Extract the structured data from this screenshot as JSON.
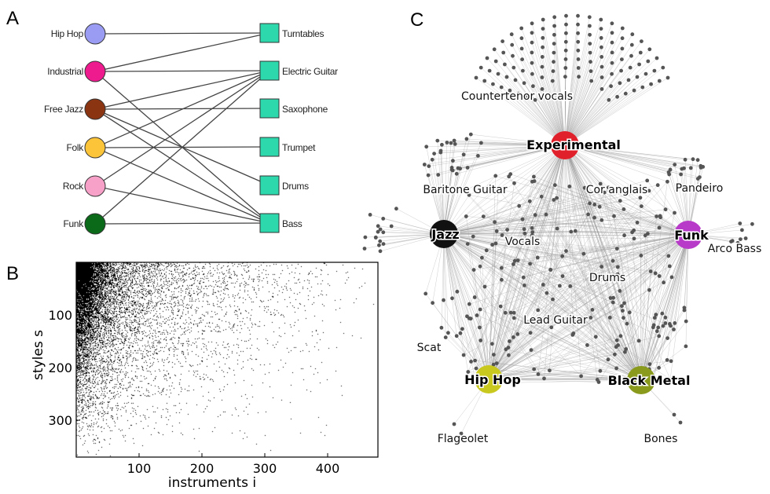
{
  "panels": {
    "a": "A",
    "b": "B",
    "c": "C"
  },
  "panel_a": {
    "styles": [
      {
        "label": "Hip Hop",
        "color": "#9a9cf3"
      },
      {
        "label": "Industrial",
        "color": "#ee1b8e"
      },
      {
        "label": "Free Jazz",
        "color": "#8b3412"
      },
      {
        "label": "Folk",
        "color": "#fcc438"
      },
      {
        "label": "Rock",
        "color": "#f7a0c8"
      },
      {
        "label": "Funk",
        "color": "#0b6a1a"
      }
    ],
    "instruments": [
      {
        "label": "Turntables"
      },
      {
        "label": "Electric Guitar"
      },
      {
        "label": "Saxophone"
      },
      {
        "label": "Trumpet"
      },
      {
        "label": "Drums"
      },
      {
        "label": "Bass"
      }
    ],
    "instrument_color": "#2dd8ad",
    "edges": [
      [
        0,
        0
      ],
      [
        1,
        0
      ],
      [
        1,
        1
      ],
      [
        1,
        5
      ],
      [
        2,
        1
      ],
      [
        2,
        2
      ],
      [
        2,
        4
      ],
      [
        2,
        5
      ],
      [
        3,
        1
      ],
      [
        3,
        3
      ],
      [
        3,
        5
      ],
      [
        4,
        1
      ],
      [
        4,
        5
      ],
      [
        5,
        1
      ],
      [
        5,
        5
      ]
    ]
  },
  "chart_data": {
    "type": "scatter",
    "title": "",
    "xlabel": "instruments i",
    "ylabel": "styles s",
    "xlim": [
      0,
      480
    ],
    "ylim": [
      370,
      0
    ],
    "x_ticks": [
      "100",
      "200",
      "300",
      "400"
    ],
    "y_ticks": [
      "100",
      "200",
      "300"
    ],
    "x_tick_values": [
      100,
      200,
      300,
      400
    ],
    "y_tick_values": [
      100,
      200,
      300
    ],
    "grid": false,
    "description_of_marks": "dense binary occurrence matrix: fully filled near small i and small s, thinning with increasing i and s",
    "num_styles": 370,
    "num_instruments": 450,
    "color": "#000000"
  },
  "panel_c": {
    "hubs": [
      {
        "label": "Experimental",
        "color": "#e0202a"
      },
      {
        "label": "Jazz",
        "color": "#111111"
      },
      {
        "label": "Funk",
        "color": "#b83ac8"
      },
      {
        "label": "Hip Hop",
        "color": "#c9c81e"
      },
      {
        "label": "Black Metal",
        "color": "#8a9a1c"
      }
    ],
    "instrument_labels": [
      "Countertenor vocals",
      "Baritone Guitar",
      "Cor anglais",
      "Pandeiro",
      "Vocals",
      "Arco Bass",
      "Drums",
      "Lead Guitar",
      "Scat",
      "Flageolet",
      "Bones"
    ],
    "node_color": "#555555",
    "edge_color": "#9a9a9a"
  }
}
